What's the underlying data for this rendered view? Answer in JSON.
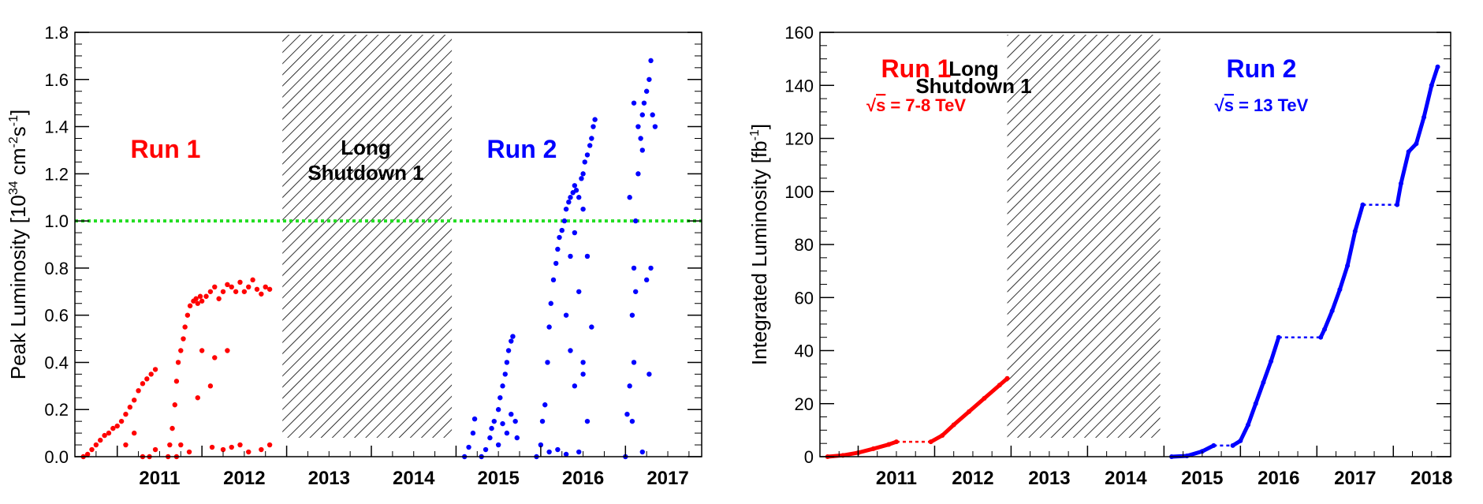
{
  "chart_data": [
    {
      "type": "scatter",
      "ylabel": "Peak Luminosity [10",
      "ylabel_exp": "34",
      "ylabel_unit": " cm",
      "ylabel_unit_exp": "-2",
      "ylabel_s": "s",
      "ylabel_s_exp": "-1",
      "ylabel_close": "]",
      "ylim": [
        0,
        1.8
      ],
      "y_ticks": [
        "0.0",
        "0.2",
        "0.4",
        "0.6",
        "0.8",
        "1.0",
        "1.2",
        "1.4",
        "1.6",
        "1.8"
      ],
      "x_range": [
        2010.5,
        2017.9
      ],
      "year_ticks": [
        "2011",
        "2012",
        "2013",
        "2014",
        "2015",
        "2016",
        "2017"
      ],
      "reference_line": {
        "y": 1.0,
        "color": "#22dd22",
        "style": "dotted"
      },
      "shutdown": {
        "x": [
          2012.95,
          2014.95
        ],
        "line1": "Long",
        "line2": "Shutdown 1"
      },
      "run_labels": [
        {
          "text": "Run 1",
          "color": "#ff0000"
        },
        {
          "text": "Run 2",
          "color": "#0000ff"
        }
      ],
      "series": [
        {
          "color": "#ff0000",
          "points": [
            [
              2010.6,
              0.0
            ],
            [
              2010.65,
              0.01
            ],
            [
              2010.7,
              0.03
            ],
            [
              2010.75,
              0.05
            ],
            [
              2010.8,
              0.07
            ],
            [
              2010.85,
              0.09
            ],
            [
              2010.9,
              0.1
            ],
            [
              2010.95,
              0.12
            ],
            [
              2011.0,
              0.13
            ],
            [
              2011.05,
              0.15
            ],
            [
              2011.1,
              0.18
            ],
            [
              2011.15,
              0.21
            ],
            [
              2011.2,
              0.24
            ],
            [
              2011.25,
              0.28
            ],
            [
              2011.3,
              0.31
            ],
            [
              2011.35,
              0.33
            ],
            [
              2011.4,
              0.35
            ],
            [
              2011.45,
              0.37
            ],
            [
              2011.3,
              0.0
            ],
            [
              2011.38,
              0.0
            ],
            [
              2011.45,
              0.03
            ],
            [
              2011.2,
              0.1
            ],
            [
              2011.1,
              0.05
            ],
            [
              2011.6,
              0.0
            ],
            [
              2011.62,
              0.05
            ],
            [
              2011.65,
              0.12
            ],
            [
              2011.68,
              0.22
            ],
            [
              2011.7,
              0.32
            ],
            [
              2011.72,
              0.4
            ],
            [
              2011.75,
              0.45
            ],
            [
              2011.78,
              0.5
            ],
            [
              2011.8,
              0.55
            ],
            [
              2011.83,
              0.6
            ],
            [
              2011.86,
              0.64
            ],
            [
              2011.9,
              0.66
            ],
            [
              2011.93,
              0.67
            ],
            [
              2011.95,
              0.65
            ],
            [
              2011.98,
              0.68
            ],
            [
              2012.0,
              0.66
            ],
            [
              2011.7,
              0.0
            ],
            [
              2011.75,
              0.05
            ],
            [
              2011.85,
              0.02
            ],
            [
              2011.95,
              0.25
            ],
            [
              2012.0,
              0.45
            ],
            [
              2012.05,
              0.68
            ],
            [
              2012.1,
              0.7
            ],
            [
              2012.15,
              0.72
            ],
            [
              2012.2,
              0.67
            ],
            [
              2012.25,
              0.7
            ],
            [
              2012.3,
              0.73
            ],
            [
              2012.35,
              0.72
            ],
            [
              2012.4,
              0.7
            ],
            [
              2012.45,
              0.74
            ],
            [
              2012.5,
              0.7
            ],
            [
              2012.55,
              0.72
            ],
            [
              2012.6,
              0.75
            ],
            [
              2012.65,
              0.71
            ],
            [
              2012.7,
              0.69
            ],
            [
              2012.75,
              0.72
            ],
            [
              2012.8,
              0.71
            ],
            [
              2012.1,
              0.3
            ],
            [
              2012.15,
              0.42
            ],
            [
              2012.3,
              0.45
            ],
            [
              2012.12,
              0.04
            ],
            [
              2012.25,
              0.03
            ],
            [
              2012.35,
              0.04
            ],
            [
              2012.45,
              0.05
            ],
            [
              2012.55,
              0.02
            ],
            [
              2012.7,
              0.03
            ],
            [
              2012.8,
              0.05
            ]
          ]
        },
        {
          "color": "#0000ff",
          "points": [
            [
              2015.1,
              0.0
            ],
            [
              2015.15,
              0.04
            ],
            [
              2015.2,
              0.1
            ],
            [
              2015.22,
              0.16
            ],
            [
              2015.3,
              0.0
            ],
            [
              2015.35,
              0.03
            ],
            [
              2015.4,
              0.08
            ],
            [
              2015.42,
              0.12
            ],
            [
              2015.45,
              0.15
            ],
            [
              2015.5,
              0.2
            ],
            [
              2015.52,
              0.25
            ],
            [
              2015.55,
              0.3
            ],
            [
              2015.58,
              0.35
            ],
            [
              2015.6,
              0.4
            ],
            [
              2015.62,
              0.45
            ],
            [
              2015.65,
              0.49
            ],
            [
              2015.67,
              0.51
            ],
            [
              2015.5,
              0.05
            ],
            [
              2015.55,
              0.14
            ],
            [
              2015.6,
              0.1
            ],
            [
              2015.65,
              0.18
            ],
            [
              2015.7,
              0.15
            ],
            [
              2015.72,
              0.08
            ],
            [
              2015.95,
              0.0
            ],
            [
              2016.0,
              0.05
            ],
            [
              2016.02,
              0.15
            ],
            [
              2016.05,
              0.22
            ],
            [
              2016.08,
              0.4
            ],
            [
              2016.1,
              0.55
            ],
            [
              2016.12,
              0.65
            ],
            [
              2016.15,
              0.75
            ],
            [
              2016.18,
              0.82
            ],
            [
              2016.2,
              0.88
            ],
            [
              2016.22,
              0.93
            ],
            [
              2016.25,
              0.96
            ],
            [
              2016.28,
              1.0
            ],
            [
              2016.3,
              1.05
            ],
            [
              2016.33,
              1.08
            ],
            [
              2016.35,
              1.1
            ],
            [
              2016.38,
              1.12
            ],
            [
              2016.4,
              1.15
            ],
            [
              2016.42,
              1.13
            ],
            [
              2016.45,
              1.1
            ],
            [
              2016.48,
              1.18
            ],
            [
              2016.5,
              1.2
            ],
            [
              2016.52,
              1.25
            ],
            [
              2016.55,
              1.28
            ],
            [
              2016.58,
              1.32
            ],
            [
              2016.6,
              1.35
            ],
            [
              2016.62,
              1.4
            ],
            [
              2016.64,
              1.43
            ],
            [
              2016.3,
              0.6
            ],
            [
              2016.35,
              0.45
            ],
            [
              2016.4,
              0.3
            ],
            [
              2016.45,
              0.7
            ],
            [
              2016.5,
              0.4
            ],
            [
              2016.55,
              0.85
            ],
            [
              2016.6,
              0.55
            ],
            [
              2016.1,
              0.02
            ],
            [
              2016.2,
              0.03
            ],
            [
              2016.3,
              0.01
            ],
            [
              2016.45,
              0.02
            ],
            [
              2016.5,
              0.35
            ],
            [
              2016.55,
              0.15
            ],
            [
              2016.35,
              0.85
            ],
            [
              2016.4,
              0.95
            ],
            [
              2016.5,
              1.05
            ],
            [
              2017.0,
              0.0
            ],
            [
              2017.02,
              0.18
            ],
            [
              2017.05,
              0.3
            ],
            [
              2017.08,
              0.6
            ],
            [
              2017.1,
              0.8
            ],
            [
              2017.12,
              1.0
            ],
            [
              2017.15,
              1.2
            ],
            [
              2017.18,
              1.35
            ],
            [
              2017.2,
              1.45
            ],
            [
              2017.22,
              1.5
            ],
            [
              2017.25,
              1.55
            ],
            [
              2017.28,
              1.6
            ],
            [
              2017.3,
              1.68
            ],
            [
              2017.32,
              1.45
            ],
            [
              2017.35,
              1.4
            ],
            [
              2017.1,
              1.5
            ],
            [
              2017.15,
              1.4
            ],
            [
              2017.2,
              1.3
            ],
            [
              2017.25,
              0.75
            ],
            [
              2017.3,
              0.8
            ],
            [
              2017.05,
              1.1
            ],
            [
              2017.1,
              0.4
            ],
            [
              2017.2,
              0.02
            ],
            [
              2017.28,
              0.35
            ],
            [
              2017.12,
              0.7
            ],
            [
              2017.08,
              0.15
            ]
          ]
        }
      ]
    },
    {
      "type": "scatter",
      "ylabel": "Integrated Luminosity [fb",
      "ylabel_exp": "-1",
      "ylabel_close": "]",
      "ylim": [
        0,
        160
      ],
      "y_ticks": [
        "0",
        "20",
        "40",
        "60",
        "80",
        "100",
        "120",
        "140",
        "160"
      ],
      "x_range": [
        2010.5,
        2018.75
      ],
      "year_ticks": [
        "2011",
        "2012",
        "2013",
        "2014",
        "2015",
        "2016",
        "2017",
        "2018"
      ],
      "shutdown": {
        "x": [
          2012.95,
          2014.95
        ],
        "line1": "Long",
        "line2": "Shutdown 1"
      },
      "run_labels": [
        {
          "text": "Run 1",
          "energy_prefix": "√",
          "energy_s": "s",
          "energy_value": " = 7-8 TeV",
          "color": "#ff0000"
        },
        {
          "text": "Run 2",
          "energy_prefix": "√",
          "energy_s": "s",
          "energy_value": " = 13 TeV",
          "color": "#0000ff"
        }
      ],
      "series": [
        {
          "color": "#ff0000",
          "dotted_gap": [
            2011.5,
            5.6,
            2011.95,
            5.6
          ],
          "segments": [
            [
              [
                2010.6,
                0
              ],
              [
                2010.8,
                0.5
              ],
              [
                2011.0,
                1.5
              ],
              [
                2011.2,
                3.0
              ],
              [
                2011.4,
                4.6
              ],
              [
                2011.5,
                5.6
              ]
            ],
            [
              [
                2011.95,
                5.6
              ],
              [
                2012.1,
                8
              ],
              [
                2012.25,
                12
              ],
              [
                2012.45,
                17
              ],
              [
                2012.65,
                22
              ],
              [
                2012.85,
                27
              ],
              [
                2012.95,
                29.5
              ]
            ]
          ]
        },
        {
          "color": "#0000ff",
          "dotted_gap_list": [
            [
              2015.65,
              4.2,
              2015.9,
              4.2
            ],
            [
              2016.5,
              45,
              2017.05,
              45
            ],
            [
              2017.6,
              95,
              2018.05,
              95
            ]
          ],
          "segments": [
            [
              [
                2015.1,
                0
              ],
              [
                2015.3,
                0.3
              ],
              [
                2015.5,
                2.0
              ],
              [
                2015.65,
                4.2
              ]
            ],
            [
              [
                2015.9,
                4.2
              ],
              [
                2016.0,
                6
              ],
              [
                2016.1,
                12
              ],
              [
                2016.2,
                20
              ],
              [
                2016.3,
                28
              ],
              [
                2016.4,
                36
              ],
              [
                2016.5,
                45
              ]
            ],
            [
              [
                2017.05,
                45
              ],
              [
                2017.1,
                48
              ],
              [
                2017.2,
                55
              ],
              [
                2017.3,
                63
              ],
              [
                2017.4,
                72
              ],
              [
                2017.5,
                85
              ],
              [
                2017.6,
                95
              ]
            ],
            [
              [
                2018.05,
                95
              ],
              [
                2018.1,
                103
              ],
              [
                2018.2,
                115
              ],
              [
                2018.3,
                118
              ],
              [
                2018.4,
                128
              ],
              [
                2018.5,
                140
              ],
              [
                2018.58,
                147
              ]
            ]
          ]
        }
      ]
    }
  ]
}
